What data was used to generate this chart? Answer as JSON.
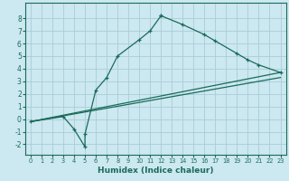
{
  "xlabel": "Humidex (Indice chaleur)",
  "bg_color": "#cce8f0",
  "grid_color": "#aaccd8",
  "line_color": "#1a6b5a",
  "xlim": [
    -0.5,
    23.5
  ],
  "ylim": [
    -2.8,
    9.2
  ],
  "xticks": [
    0,
    1,
    2,
    3,
    4,
    5,
    6,
    7,
    8,
    9,
    10,
    11,
    12,
    13,
    14,
    15,
    16,
    17,
    18,
    19,
    20,
    21,
    22,
    23
  ],
  "yticks": [
    -2,
    -1,
    0,
    1,
    2,
    3,
    4,
    5,
    6,
    7,
    8
  ],
  "series1_x": [
    0,
    3,
    4,
    5,
    5,
    6,
    7,
    8,
    10,
    11,
    12,
    12,
    14,
    16,
    17,
    19,
    20,
    21,
    23
  ],
  "series1_y": [
    -0.2,
    0.2,
    -0.8,
    -2.2,
    -1.2,
    2.3,
    3.3,
    5.0,
    6.3,
    7.0,
    8.2,
    8.2,
    7.5,
    6.7,
    6.2,
    5.2,
    4.7,
    4.3,
    3.7
  ],
  "series2_x": [
    0,
    23
  ],
  "series2_y": [
    -0.2,
    3.3
  ],
  "series3_x": [
    0,
    23
  ],
  "series3_y": [
    -0.2,
    3.7
  ],
  "xlabel_fontsize": 6.5,
  "tick_fontsize_x": 4.8,
  "tick_fontsize_y": 5.5
}
